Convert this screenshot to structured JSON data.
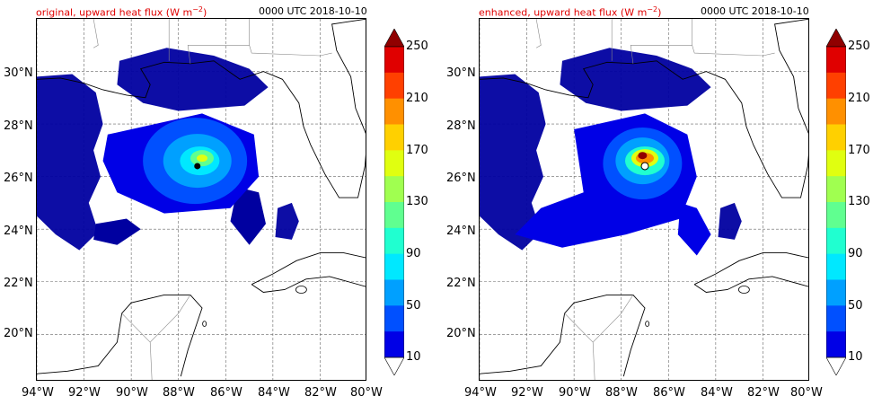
{
  "panels": [
    {
      "id": "left",
      "title": "original, upward heat flux (W m",
      "title_sup": "−2",
      "title_close": ")",
      "time": "0000 UTC 2018-10-10",
      "lat_labels": [
        "30°N",
        "28°N",
        "26°N",
        "24°N",
        "22°N",
        "20°N"
      ],
      "lon_labels": [
        "94°W",
        "92°W",
        "90°W",
        "88°W",
        "86°W",
        "84°W",
        "82°W",
        "80°W"
      ],
      "colorbar_labels": [
        "250",
        "210",
        "170",
        "130",
        "90",
        "50",
        "10"
      ],
      "storm_center": {
        "lon": -87.2,
        "lat": 26.4
      }
    },
    {
      "id": "right",
      "title": "enhanced, upward heat flux (W m",
      "title_sup": "−2",
      "title_close": ")",
      "time": "0000 UTC 2018-10-10",
      "lat_labels": [
        "30°N",
        "28°N",
        "26°N",
        "24°N",
        "22°N",
        "20°N"
      ],
      "lon_labels": [
        "94°W",
        "92°W",
        "90°W",
        "88°W",
        "86°W",
        "84°W",
        "82°W",
        "80°W"
      ],
      "colorbar_labels": [
        "250",
        "210",
        "170",
        "130",
        "90",
        "50",
        "10"
      ],
      "storm_center": {
        "lon": -87.0,
        "lat": 26.6
      }
    }
  ],
  "colors": {
    "scale": [
      "#0000a0",
      "#0000e6",
      "#0050ff",
      "#00a0ff",
      "#00e8ff",
      "#20ffd0",
      "#60ff90",
      "#a0ff50",
      "#e0ff10",
      "#ffd000",
      "#ff9000",
      "#ff4000",
      "#e00000",
      "#900000"
    ],
    "title": "#e00000"
  }
}
